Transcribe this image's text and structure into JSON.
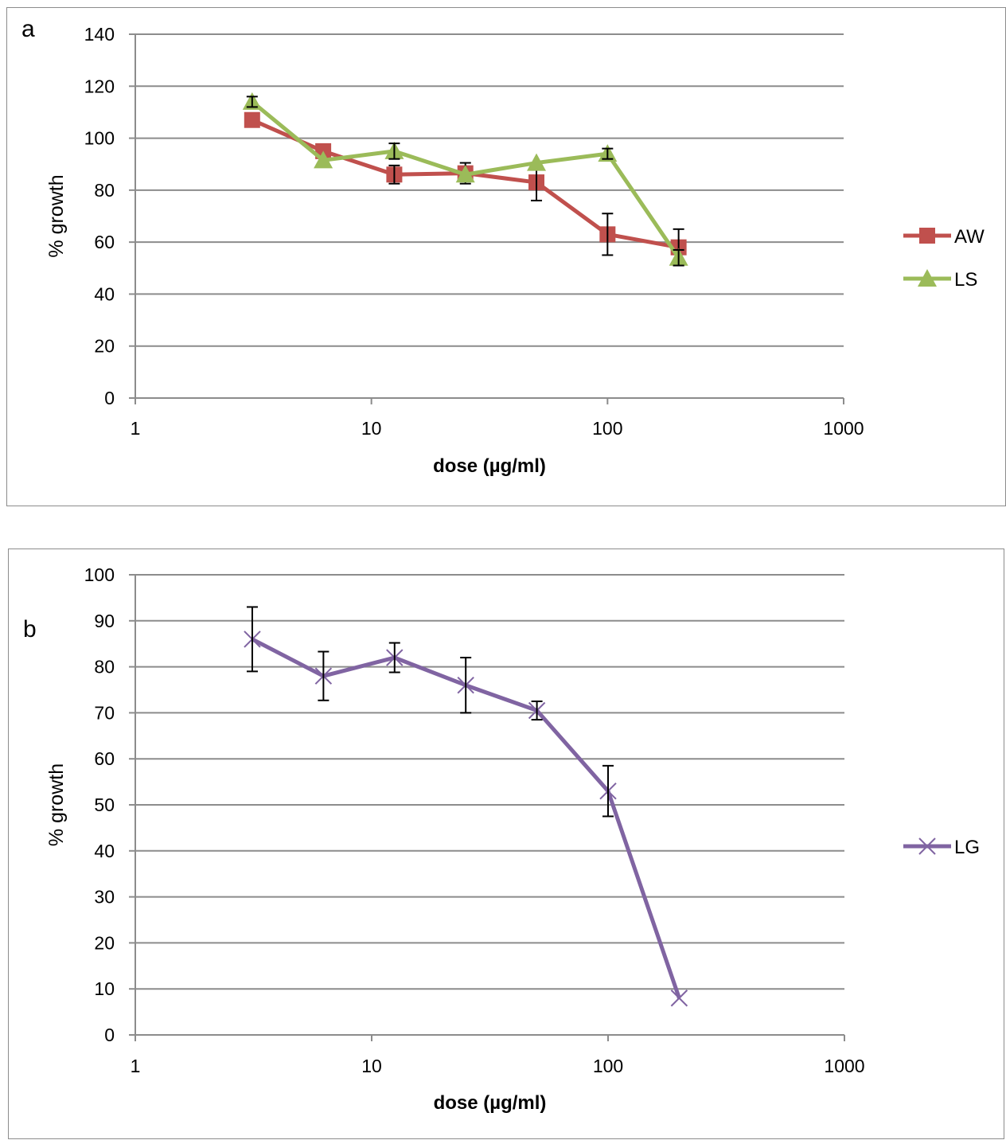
{
  "chart_data": [
    {
      "panel": "a",
      "type": "line",
      "xscale": "log",
      "xlim": [
        1,
        1000
      ],
      "ylim": [
        0,
        140
      ],
      "xticks": [
        1,
        10,
        100,
        1000
      ],
      "xtick_labels": [
        "1",
        "10",
        "100",
        "1000"
      ],
      "yticks": [
        0,
        20,
        40,
        60,
        80,
        100,
        120,
        140
      ],
      "ytick_labels": [
        "0",
        "20",
        "40",
        "60",
        "80",
        "100",
        "120",
        "140"
      ],
      "xlabel": "dose (µg/ml)",
      "ylabel": "% growth",
      "grid": "horizontal",
      "legend_position": "right",
      "x": [
        3.125,
        6.25,
        12.5,
        25,
        50,
        100,
        200
      ],
      "series": [
        {
          "name": "AW",
          "color": "#c0504d",
          "marker": "square",
          "values": [
            107,
            95,
            86,
            86.5,
            83,
            63,
            58
          ],
          "errors": [
            null,
            null,
            3.5,
            4,
            7,
            8,
            7
          ]
        },
        {
          "name": "LS",
          "color": "#9bbb59",
          "marker": "triangle",
          "values": [
            114,
            91.5,
            95,
            86,
            90.5,
            94,
            54
          ],
          "errors": [
            2,
            null,
            3,
            null,
            null,
            2,
            3
          ]
        }
      ]
    },
    {
      "panel": "b",
      "type": "line",
      "xscale": "log",
      "xlim": [
        1,
        1000
      ],
      "ylim": [
        0,
        100
      ],
      "xticks": [
        1,
        10,
        100,
        1000
      ],
      "xtick_labels": [
        "1",
        "10",
        "100",
        "1000"
      ],
      "yticks": [
        0,
        10,
        20,
        30,
        40,
        50,
        60,
        70,
        80,
        90,
        100
      ],
      "ytick_labels": [
        "0",
        "10",
        "20",
        "30",
        "40",
        "50",
        "60",
        "70",
        "80",
        "90",
        "100"
      ],
      "xlabel": "dose (µg/ml)",
      "ylabel": "% growth",
      "grid": "horizontal",
      "legend_position": "right",
      "x": [
        3.125,
        6.25,
        12.5,
        25,
        50,
        100,
        200
      ],
      "series": [
        {
          "name": "LG",
          "color": "#8064a2",
          "marker": "x",
          "values": [
            86,
            78,
            82,
            76,
            70.5,
            53,
            8
          ],
          "errors": [
            7,
            5.3,
            3.2,
            6,
            2,
            5.5,
            null
          ]
        }
      ]
    }
  ]
}
